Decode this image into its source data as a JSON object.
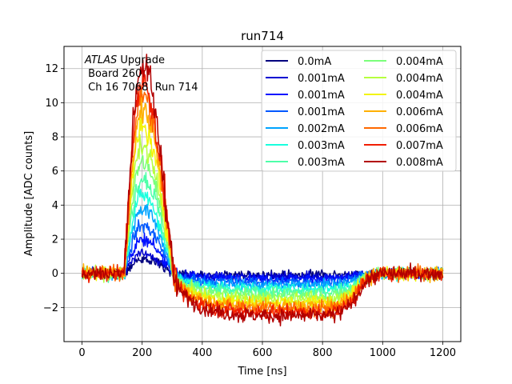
{
  "chart_data": {
    "type": "line",
    "title": "run714",
    "xlabel": "Time [ns]",
    "ylabel": "Amplitude [ADC counts]",
    "xlim": [
      -60,
      1260
    ],
    "ylim": [
      -4.0,
      13.3
    ],
    "xticks": [
      0,
      200,
      400,
      600,
      800,
      1000,
      1200
    ],
    "yticks": [
      -2,
      0,
      2,
      4,
      6,
      8,
      10,
      12
    ],
    "grid": true,
    "legend": {
      "placement": "top-right",
      "columns": 2
    },
    "annotation": {
      "italic": "ATLAS",
      "rest": " Upgrade",
      "line2": " Board 260",
      "line3": " Ch 16 7068  Run 714"
    },
    "time_range_ns": [
      0,
      1200
    ],
    "series": [
      {
        "name": "0.0mA",
        "color": "#00007f",
        "peak": 0.8,
        "undershoot": -0.1
      },
      {
        "name": "0.001mA",
        "color": "#0000d1",
        "peak": 1.2,
        "undershoot": -0.2
      },
      {
        "name": "0.001mA",
        "color": "#0010ff",
        "peak": 1.9,
        "undershoot": -0.3
      },
      {
        "name": "0.001mA",
        "color": "#0058ff",
        "peak": 2.8,
        "undershoot": -0.5
      },
      {
        "name": "0.002mA",
        "color": "#00a4ff",
        "peak": 3.8,
        "undershoot": -0.7
      },
      {
        "name": "0.003mA",
        "color": "#19ffde",
        "peak": 4.6,
        "undershoot": -0.9
      },
      {
        "name": "0.003mA",
        "color": "#4effa9",
        "peak": 5.6,
        "undershoot": -1.1
      },
      {
        "name": "0.004mA",
        "color": "#7bff7b",
        "peak": 6.5,
        "undershoot": -1.3
      },
      {
        "name": "0.004mA",
        "color": "#b6ff3f",
        "peak": 7.4,
        "undershoot": -1.5
      },
      {
        "name": "0.004mA",
        "color": "#f2f40b",
        "peak": 8.5,
        "undershoot": -1.7
      },
      {
        "name": "0.006mA",
        "color": "#ffb000",
        "peak": 9.6,
        "undershoot": -1.9
      },
      {
        "name": "0.006mA",
        "color": "#ff6800",
        "peak": 10.5,
        "undershoot": -2.1
      },
      {
        "name": "0.007mA",
        "color": "#f11e00",
        "peak": 11.3,
        "undershoot": -2.3
      },
      {
        "name": "0.008mA",
        "color": "#b20000",
        "peak": 12.2,
        "undershoot": -2.5
      }
    ]
  }
}
